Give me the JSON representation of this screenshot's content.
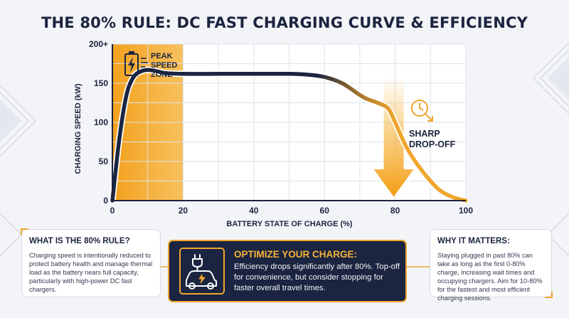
{
  "title": "THE 80% RULE: DC FAST CHARGING CURVE & EFFICIENCY",
  "chart_data": {
    "type": "line",
    "xlabel": "BATTERY STATE OF CHARGE (%)",
    "ylabel": "CHARGING SPEED (kW)",
    "xlim": [
      0,
      100
    ],
    "ylim": [
      0,
      200
    ],
    "x_ticks": [
      "0",
      "20",
      "40",
      "60",
      "80",
      "100"
    ],
    "y_ticks": [
      "0",
      "50",
      "100",
      "150",
      "200+"
    ],
    "grid": true,
    "series": [
      {
        "x": [
          0,
          2,
          4,
          6,
          8,
          10,
          12,
          15,
          20,
          30,
          40,
          50,
          55,
          60,
          65,
          70,
          72,
          75,
          78,
          80,
          83,
          86,
          90,
          93,
          96,
          98,
          100
        ],
        "y": [
          0,
          80,
          135,
          158,
          165,
          167,
          166,
          163,
          162,
          162,
          162,
          162,
          161,
          158,
          150,
          135,
          130,
          125,
          118,
          100,
          70,
          48,
          25,
          12,
          5,
          2,
          0
        ]
      }
    ],
    "annotations": {
      "peak_zone": {
        "x_range": [
          0,
          20
        ],
        "label": "PEAK SPEED ZONE"
      },
      "drop_off": {
        "x": 80,
        "label": "SHARP DROP-OFF"
      }
    }
  },
  "cards": {
    "left": {
      "heading": "WHAT IS THE 80% RULE?",
      "body": "Charging speed is intentionally reduced to protect battery health and manage thermal load as the battery nears full capacity, particularly with high-power DC fast chargers."
    },
    "center": {
      "heading": "OPTIMIZE YOUR CHARGE:",
      "body": "Efficiency drops significantly after 80%. Top-off for convenience, but consider stopping for faster overall travel times."
    },
    "right": {
      "heading": "WHY IT MATTERS:",
      "body": "Staying plugged in past 80% can take as long as the first 0-80% charge, increasing wait times and occupying chargers. Aim for 10-80% for the fastest and most efficient charging sessions."
    }
  },
  "colors": {
    "navy": "#1b2440",
    "orange": "#f0a62e",
    "background": "#f3f4f7"
  },
  "icons": [
    "battery-charging-icon",
    "clock-arrow-icon",
    "car-plug-icon"
  ]
}
